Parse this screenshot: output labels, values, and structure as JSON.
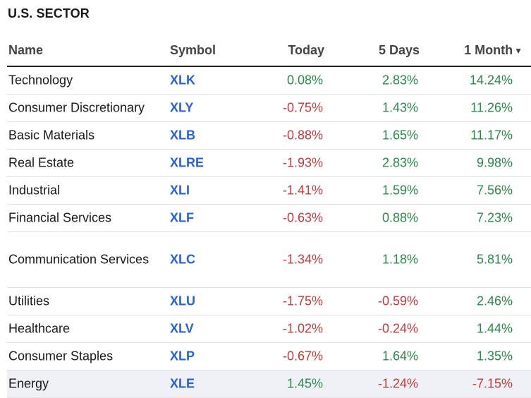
{
  "title": "U.S. SECTOR",
  "columns": {
    "name": "Name",
    "symbol": "Symbol",
    "today": "Today",
    "five_days": "5 Days",
    "one_month": "1 Month",
    "sort_icon": "caret-down-icon"
  },
  "colors": {
    "positive": "#2a8a4a",
    "negative": "#c43a3a",
    "symbol": "#2860d6",
    "highlight_row": "#eef0f5"
  },
  "rows": [
    {
      "name": "Technology",
      "symbol": "XLK",
      "today": "0.08%",
      "five_days": "2.83%",
      "one_month": "14.24%"
    },
    {
      "name": "Consumer Discretionary",
      "symbol": "XLY",
      "today": "-0.75%",
      "five_days": "1.43%",
      "one_month": "11.26%"
    },
    {
      "name": "Basic Materials",
      "symbol": "XLB",
      "today": "-0.88%",
      "five_days": "1.65%",
      "one_month": "11.17%"
    },
    {
      "name": "Real Estate",
      "symbol": "XLRE",
      "today": "-1.93%",
      "five_days": "2.83%",
      "one_month": "9.98%"
    },
    {
      "name": "Industrial",
      "symbol": "XLI",
      "today": "-1.41%",
      "five_days": "1.59%",
      "one_month": "7.56%"
    },
    {
      "name": "Financial Services",
      "symbol": "XLF",
      "today": "-0.63%",
      "five_days": "0.88%",
      "one_month": "7.23%"
    },
    {
      "name": "Communication Services",
      "symbol": "XLC",
      "today": "-1.34%",
      "five_days": "1.18%",
      "one_month": "5.81%"
    },
    {
      "name": "Utilities",
      "symbol": "XLU",
      "today": "-1.75%",
      "five_days": "-0.59%",
      "one_month": "2.46%"
    },
    {
      "name": "Healthcare",
      "symbol": "XLV",
      "today": "-1.02%",
      "five_days": "-0.24%",
      "one_month": "1.44%"
    },
    {
      "name": "Consumer Staples",
      "symbol": "XLP",
      "today": "-0.67%",
      "five_days": "1.64%",
      "one_month": "1.35%"
    },
    {
      "name": "Energy",
      "symbol": "XLE",
      "today": "1.45%",
      "five_days": "-1.24%",
      "one_month": "-7.15%"
    }
  ]
}
